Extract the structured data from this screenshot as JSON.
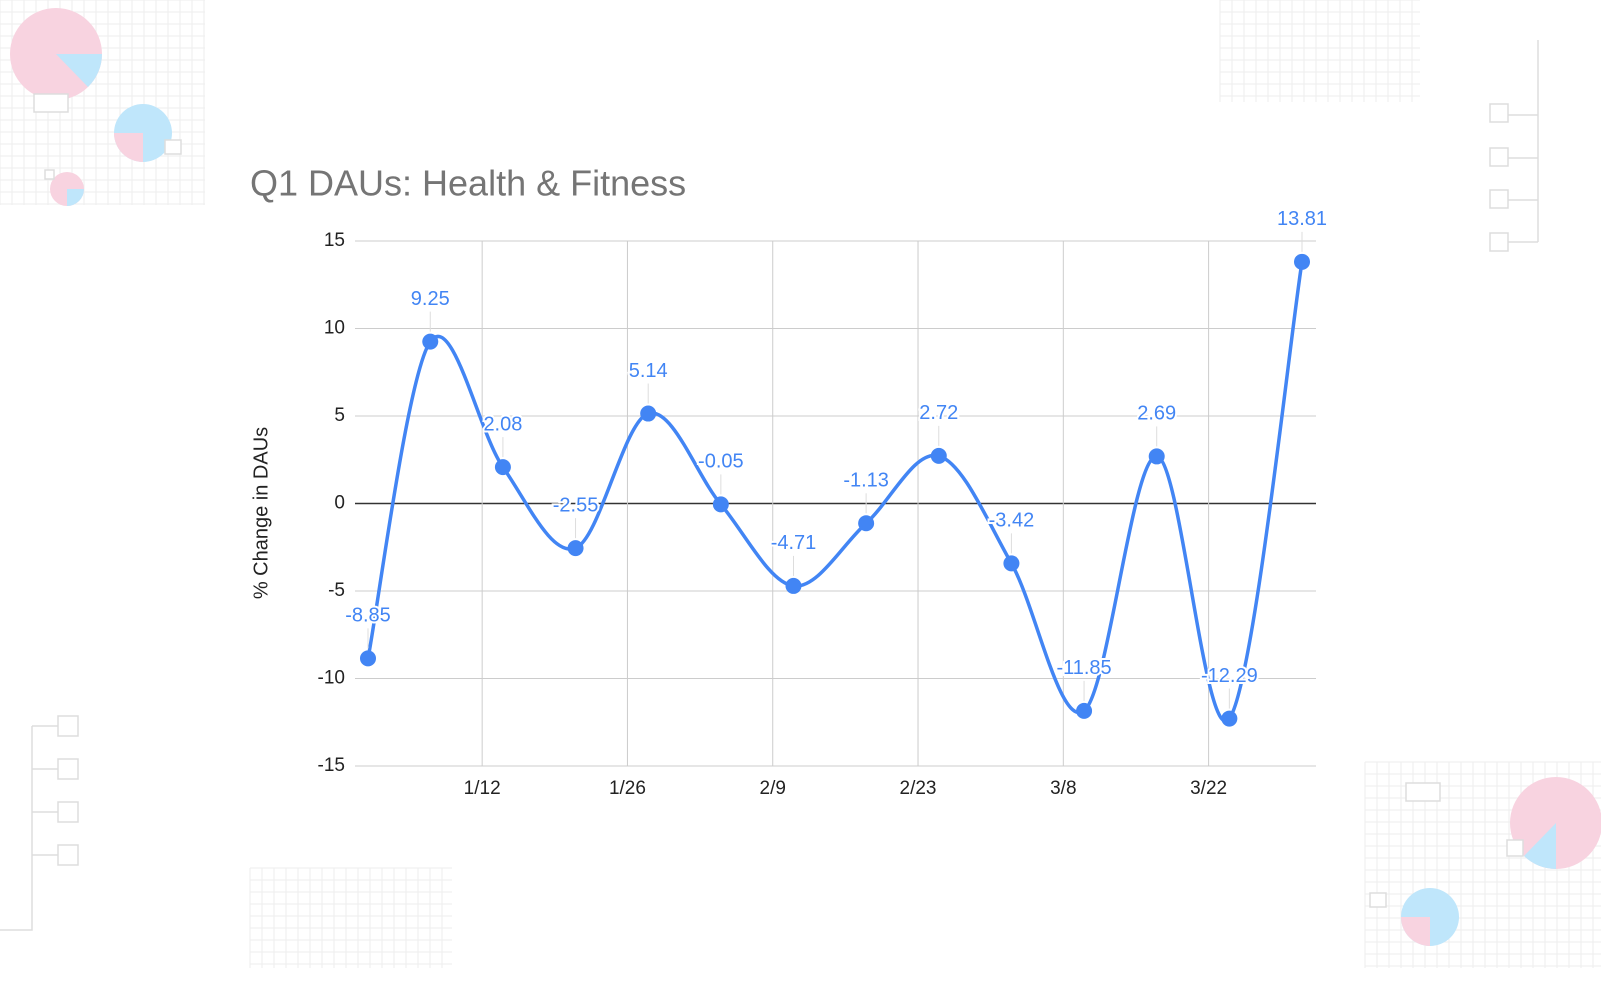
{
  "chart_data": {
    "type": "line",
    "title": "Q1 DAUs: Health & Fitness",
    "y_label": "% Change in DAUs",
    "x": [
      "1/1",
      "1/7",
      "1/14",
      "1/21",
      "1/28",
      "2/4",
      "2/11",
      "2/18",
      "2/25",
      "3/3",
      "3/10",
      "3/17",
      "3/24",
      "3/31"
    ],
    "series": [
      {
        "name": "% Change in DAUs",
        "color": "#4285f4",
        "values": [
          -8.85,
          9.25,
          2.08,
          -2.55,
          5.14,
          -0.05,
          -4.71,
          -1.13,
          2.72,
          -3.42,
          -11.85,
          2.69,
          -12.29,
          13.81
        ]
      }
    ],
    "ylim": [
      -15,
      15
    ],
    "yticks": [
      -15,
      -10,
      -5,
      0,
      5,
      10,
      15
    ],
    "xticks": [
      "1/12",
      "1/26",
      "2/9",
      "2/23",
      "3/8",
      "3/22"
    ],
    "grid": true,
    "smooth": true,
    "data_labels": true
  }
}
